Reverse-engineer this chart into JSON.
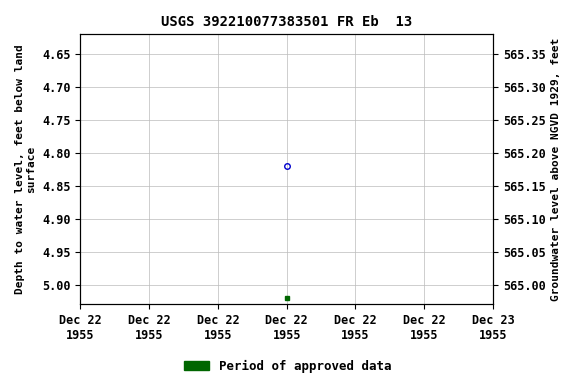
{
  "title": "USGS 392210077383501 FR Eb  13",
  "ylabel_left": "Depth to water level, feet below land\nsurface",
  "ylabel_right": "Groundwater level above NGVD 1929, feet",
  "ylim_left": [
    5.03,
    4.62
  ],
  "ylim_right": [
    564.97,
    565.38
  ],
  "y_ticks_left": [
    4.65,
    4.7,
    4.75,
    4.8,
    4.85,
    4.9,
    4.95,
    5.0
  ],
  "y_ticks_right": [
    565.35,
    565.3,
    565.25,
    565.2,
    565.15,
    565.1,
    565.05,
    565.0
  ],
  "xlim": [
    0,
    6
  ],
  "x_ticks": [
    0,
    1,
    2,
    3,
    4,
    5,
    6
  ],
  "x_tick_labels": [
    "Dec 22\n1955",
    "Dec 22\n1955",
    "Dec 22\n1955",
    "Dec 22\n1955",
    "Dec 22\n1955",
    "Dec 22\n1955",
    "Dec 23\n1955"
  ],
  "point1_x": 3,
  "point1_y": 4.82,
  "point1_color": "#0000cc",
  "point1_marker": "o",
  "point1_filled": false,
  "point2_x": 3,
  "point2_y": 5.02,
  "point2_color": "#006600",
  "point2_marker": "s",
  "point2_filled": true,
  "legend_label": "Period of approved data",
  "legend_color": "#006600",
  "background_color": "#ffffff",
  "grid_color": "#bbbbbb",
  "title_fontsize": 10,
  "label_fontsize": 8,
  "tick_fontsize": 8.5,
  "legend_fontsize": 9
}
